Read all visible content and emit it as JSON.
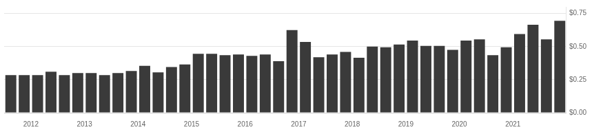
{
  "chart_data": {
    "type": "bar",
    "categories": [
      null,
      "2012",
      null,
      null,
      null,
      "2013",
      null,
      null,
      null,
      "2014",
      null,
      null,
      null,
      "2015",
      null,
      null,
      null,
      "2016",
      null,
      null,
      null,
      "2017",
      null,
      null,
      null,
      "2018",
      null,
      null,
      null,
      "2019",
      null,
      null,
      null,
      "2020",
      null,
      null,
      null,
      "2021",
      null,
      null,
      null,
      null
    ],
    "values": [
      0.285,
      0.285,
      0.285,
      0.31,
      0.285,
      0.3,
      0.3,
      0.285,
      0.3,
      0.315,
      0.355,
      0.305,
      0.345,
      0.365,
      0.445,
      0.445,
      0.435,
      0.44,
      0.43,
      0.44,
      0.39,
      0.625,
      0.535,
      0.42,
      0.44,
      0.46,
      0.415,
      0.5,
      0.495,
      0.515,
      0.545,
      0.505,
      0.505,
      0.475,
      0.545,
      0.555,
      0.435,
      0.495,
      0.595,
      0.665,
      0.555,
      0.695
    ],
    "color": "#3a3a3a",
    "ylim": [
      0.0,
      0.8
    ],
    "yticks": [
      {
        "value": 0.0,
        "label": "$0.00"
      },
      {
        "value": 0.25,
        "label": "$0.25"
      },
      {
        "value": 0.5,
        "label": "$0.50"
      },
      {
        "value": 0.75,
        "label": "$0.75"
      }
    ],
    "grid": true
  }
}
